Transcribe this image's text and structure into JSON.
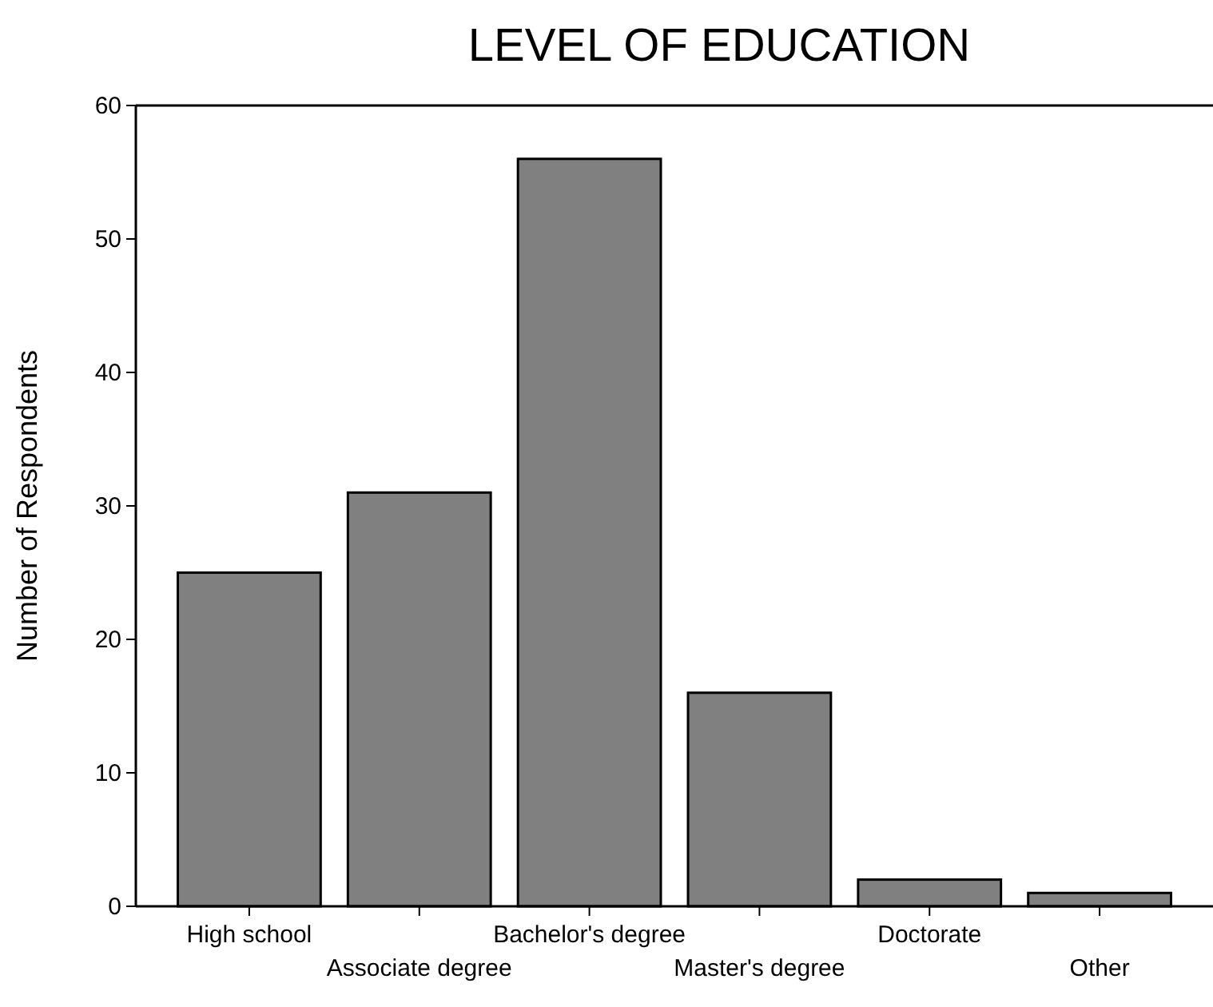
{
  "chart_data": {
    "type": "bar",
    "title": "LEVEL OF EDUCATION",
    "ylabel": "Number of Respondents",
    "categories": [
      "High school",
      "Associate degree",
      "Bachelor's degree",
      "Master's degree",
      "Doctorate",
      "Other"
    ],
    "values": [
      25,
      31,
      56,
      16,
      2,
      1
    ],
    "color": "#808080",
    "ylim": [
      0,
      60
    ],
    "yticks": [
      0,
      10,
      20,
      30,
      40,
      50,
      60
    ],
    "grid": false
  }
}
